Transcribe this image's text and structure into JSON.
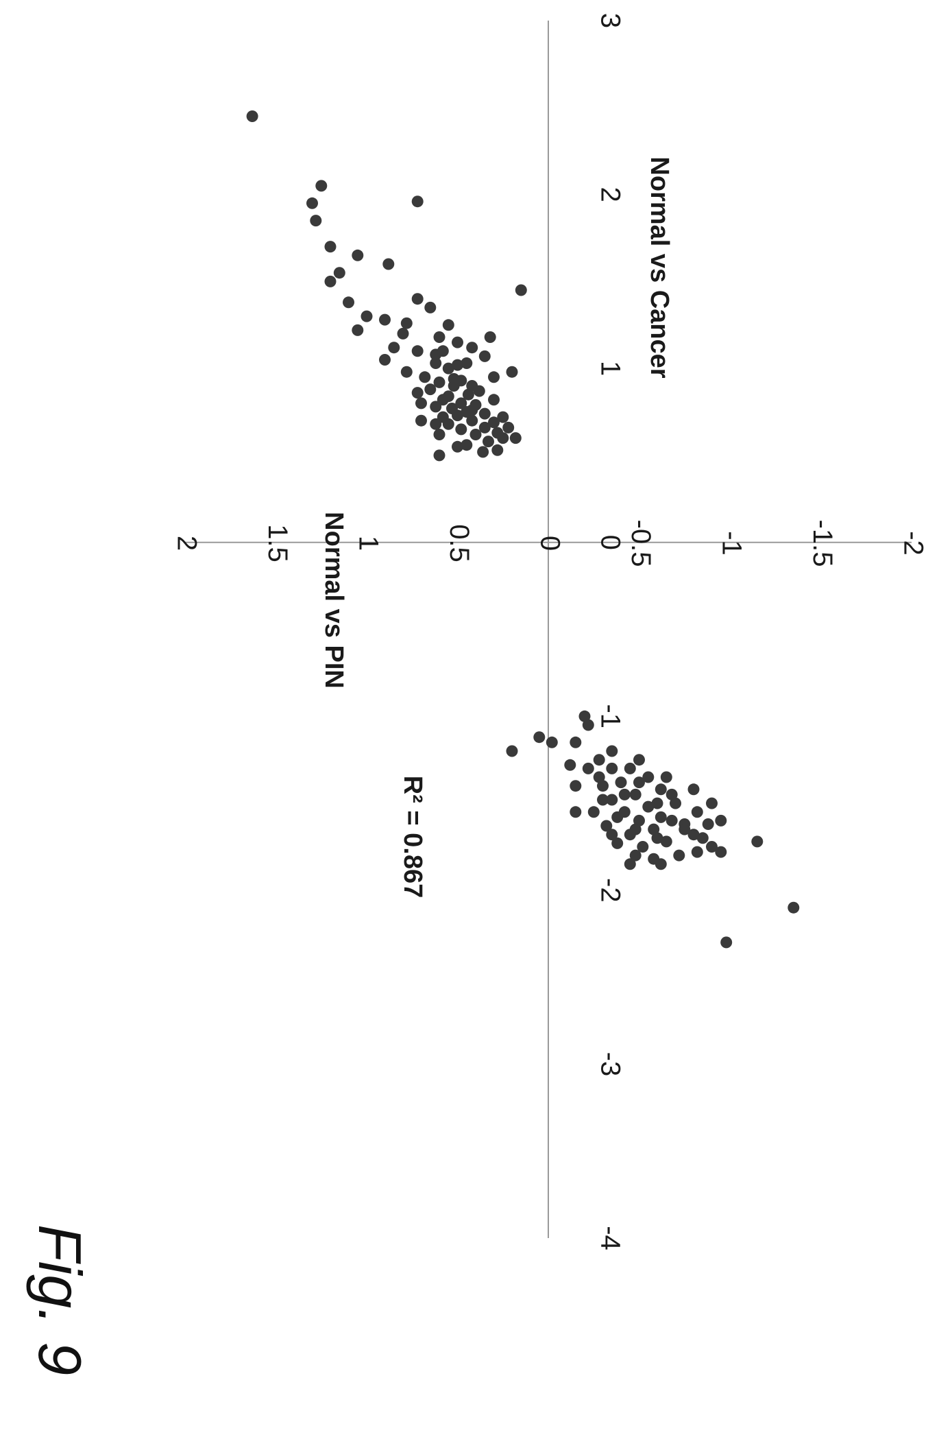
{
  "figure_label": "Fig. 9",
  "chart_data": {
    "type": "scatter",
    "title": "",
    "xlabel": "Normal vs Cancer",
    "ylabel": "Normal vs PIN",
    "annotation": "R² = 0.867",
    "xlim": [
      -4,
      3
    ],
    "ylim": [
      -2,
      2
    ],
    "x_ticks": [
      "-4",
      "-3",
      "-2",
      "-1",
      "0",
      "1",
      "2",
      "3"
    ],
    "y_ticks": [
      "-2",
      "-1.5",
      "-1",
      "-0.5",
      "0",
      "0.5",
      "1",
      "1.5",
      "2"
    ],
    "grid": false,
    "legend": "none",
    "series": [
      {
        "points": [
          [
            2.45,
            1.63
          ],
          [
            2.05,
            1.25
          ],
          [
            1.95,
            1.3
          ],
          [
            1.85,
            1.28
          ],
          [
            1.96,
            0.72
          ],
          [
            1.7,
            1.2
          ],
          [
            1.65,
            1.05
          ],
          [
            1.6,
            0.88
          ],
          [
            1.55,
            1.15
          ],
          [
            1.5,
            1.2
          ],
          [
            1.4,
            0.72
          ],
          [
            1.38,
            1.1
          ],
          [
            1.35,
            0.65
          ],
          [
            1.3,
            1.0
          ],
          [
            1.28,
            0.9
          ],
          [
            1.25,
            0.55
          ],
          [
            1.22,
            1.05
          ],
          [
            1.2,
            0.8
          ],
          [
            1.18,
            0.6
          ],
          [
            1.15,
            0.5
          ],
          [
            1.12,
            0.85
          ],
          [
            1.1,
            0.72
          ],
          [
            1.08,
            0.62
          ],
          [
            1.05,
            0.9
          ],
          [
            1.03,
            0.45
          ],
          [
            1.0,
            0.55
          ],
          [
            0.98,
            0.78
          ],
          [
            0.95,
            0.68
          ],
          [
            0.93,
            0.48
          ],
          [
            0.92,
            0.6
          ],
          [
            0.9,
            0.52
          ],
          [
            0.88,
            0.65
          ],
          [
            0.86,
            0.72
          ],
          [
            0.85,
            0.44
          ],
          [
            0.84,
            0.55
          ],
          [
            0.82,
            0.58
          ],
          [
            0.8,
            0.48
          ],
          [
            0.79,
            0.4
          ],
          [
            0.78,
            0.62
          ],
          [
            0.77,
            0.53
          ],
          [
            0.75,
            0.45
          ],
          [
            0.74,
            0.35
          ],
          [
            0.73,
            0.5
          ],
          [
            0.72,
            0.58
          ],
          [
            0.7,
            0.42
          ],
          [
            0.69,
            0.3
          ],
          [
            0.68,
            0.55
          ],
          [
            0.66,
            0.35
          ],
          [
            0.65,
            0.48
          ],
          [
            0.63,
            0.28
          ],
          [
            0.62,
            0.4
          ],
          [
            0.6,
            0.25
          ],
          [
            0.58,
            0.33
          ],
          [
            0.56,
            0.45
          ],
          [
            0.55,
            0.5
          ],
          [
            0.53,
            0.28
          ],
          [
            0.52,
            0.36
          ],
          [
            0.5,
            0.6
          ],
          [
            1.45,
            0.15
          ],
          [
            0.98,
            0.2
          ],
          [
            1.12,
            0.42
          ],
          [
            1.07,
            0.35
          ],
          [
            0.95,
            0.3
          ],
          [
            0.87,
            0.38
          ],
          [
            0.82,
            0.3
          ],
          [
            0.72,
            0.25
          ],
          [
            0.66,
            0.22
          ],
          [
            0.6,
            0.18
          ],
          [
            1.03,
            0.62
          ],
          [
            1.18,
            0.32
          ],
          [
            0.68,
            0.62
          ],
          [
            0.76,
            0.42
          ],
          [
            0.9,
            0.42
          ],
          [
            0.94,
            0.52
          ],
          [
            1.02,
            0.5
          ],
          [
            0.8,
            0.7
          ],
          [
            0.7,
            0.7
          ],
          [
            0.62,
            0.6
          ],
          [
            1.1,
            0.58
          ],
          [
            1.26,
            0.78
          ],
          [
            -1.0,
            -0.2
          ],
          [
            -1.05,
            -0.22
          ],
          [
            -1.15,
            -0.15
          ],
          [
            -1.2,
            -0.35
          ],
          [
            -1.25,
            -0.28
          ],
          [
            -1.3,
            -0.45
          ],
          [
            -1.3,
            -0.22
          ],
          [
            -1.35,
            -0.55
          ],
          [
            -1.38,
            -0.4
          ],
          [
            -1.4,
            -0.3
          ],
          [
            -1.42,
            -0.62
          ],
          [
            -1.45,
            -0.48
          ],
          [
            -1.48,
            -0.35
          ],
          [
            -1.5,
            -0.7
          ],
          [
            -1.52,
            -0.55
          ],
          [
            -1.55,
            -0.42
          ],
          [
            -1.55,
            -0.25
          ],
          [
            -1.58,
            -0.62
          ],
          [
            -1.6,
            -0.5
          ],
          [
            -1.62,
            -0.75
          ],
          [
            -1.63,
            -0.32
          ],
          [
            -1.65,
            -0.58
          ],
          [
            -1.68,
            -0.45
          ],
          [
            -1.7,
            -0.85
          ],
          [
            -1.72,
            -0.65
          ],
          [
            -1.73,
            -0.38
          ],
          [
            -1.75,
            -0.52
          ],
          [
            -1.78,
            -0.95
          ],
          [
            -1.8,
            -0.72
          ],
          [
            -1.82,
            -0.58
          ],
          [
            -1.85,
            -0.45
          ],
          [
            -1.5,
            -0.9
          ],
          [
            -1.55,
            -0.82
          ],
          [
            -1.6,
            -0.95
          ],
          [
            -1.65,
            -0.75
          ],
          [
            -1.7,
            -0.6
          ],
          [
            -1.62,
            -0.88
          ],
          [
            -1.68,
            -0.8
          ],
          [
            -1.75,
            -0.9
          ],
          [
            -1.58,
            -0.38
          ],
          [
            -1.45,
            -0.68
          ],
          [
            -1.48,
            -0.3
          ],
          [
            -1.35,
            -0.28
          ],
          [
            -1.72,
            -1.15
          ],
          [
            -2.1,
            -1.35
          ],
          [
            -2.3,
            -0.98
          ],
          [
            -1.2,
            0.2
          ],
          [
            -1.12,
            0.05
          ],
          [
            -1.15,
            -0.02
          ],
          [
            -1.28,
            -0.12
          ],
          [
            -1.4,
            -0.15
          ],
          [
            -1.55,
            -0.15
          ],
          [
            -1.38,
            -0.5
          ],
          [
            -1.5,
            -0.6
          ],
          [
            -1.65,
            -0.48
          ],
          [
            -1.6,
            -0.68
          ],
          [
            -1.25,
            -0.5
          ],
          [
            -1.35,
            -0.65
          ],
          [
            -1.42,
            -0.8
          ],
          [
            -1.78,
            -0.82
          ],
          [
            -1.85,
            -0.62
          ],
          [
            -1.8,
            -0.48
          ],
          [
            -1.68,
            -0.35
          ],
          [
            -1.45,
            -0.42
          ],
          [
            -1.3,
            -0.35
          ]
        ]
      }
    ]
  }
}
